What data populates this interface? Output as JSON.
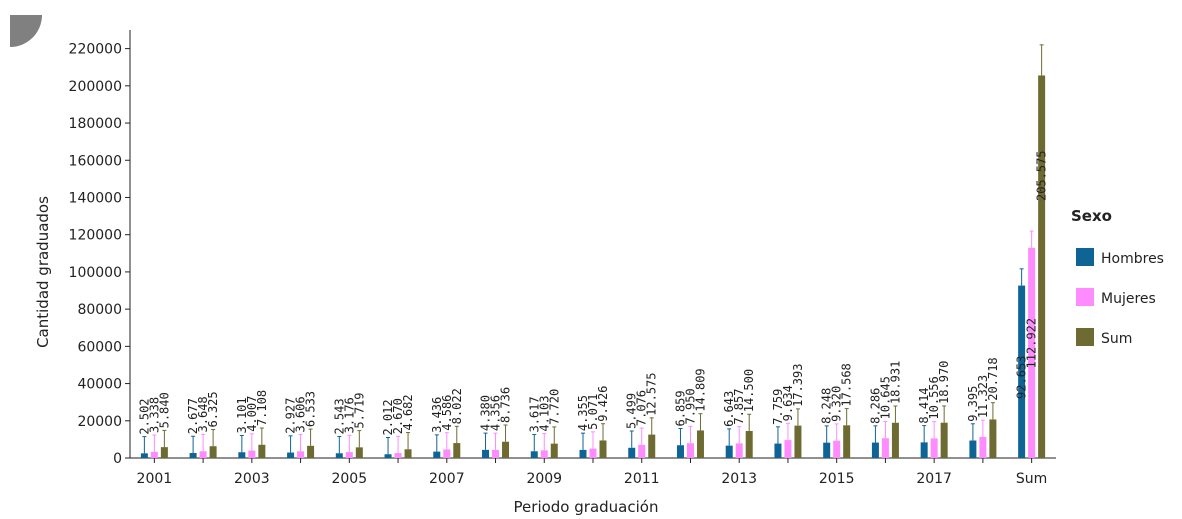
{
  "chart_data": {
    "type": "bar",
    "title": "",
    "xlabel": "Periodo graduación",
    "ylabel": "Cantidad graduados",
    "ylim": [
      0,
      230000
    ],
    "yticks": [
      0,
      20000,
      40000,
      60000,
      80000,
      100000,
      120000,
      140000,
      160000,
      180000,
      200000,
      220000
    ],
    "categories": [
      "2001",
      "2002",
      "2003",
      "2004",
      "2005",
      "2006",
      "2007",
      "2008",
      "2009",
      "2010",
      "2011",
      "2012",
      "2013",
      "2014",
      "2015",
      "2016",
      "2017",
      "2018",
      "Sum"
    ],
    "xtick_labels": [
      "2001",
      "",
      "2003",
      "",
      "2005",
      "",
      "2007",
      "",
      "2009",
      "",
      "2011",
      "",
      "2013",
      "",
      "2015",
      "",
      "2017",
      "",
      "Sum"
    ],
    "legend_title": "Sexo",
    "legend_position": "right",
    "grid": false,
    "series": [
      {
        "name": "Hombres",
        "color": "#0f6496",
        "values": [
          2502,
          2677,
          3101,
          2927,
          2543,
          2012,
          3436,
          4380,
          3617,
          4355,
          5499,
          6859,
          6643,
          7759,
          8248,
          8286,
          8414,
          9395,
          92653
        ],
        "labels": [
          "2.502",
          "2.677",
          "3.101",
          "2.927",
          "2.543",
          "2.012",
          "3.436",
          "4.380",
          "3.617",
          "4.355",
          "5.499",
          "6.859",
          "6.643",
          "7.759",
          "8.248",
          "8.286",
          "8.414",
          "9.395",
          "92.653"
        ]
      },
      {
        "name": "Mujeres",
        "color": "#ff8cff",
        "values": [
          3338,
          3648,
          4007,
          3606,
          3176,
          2670,
          4586,
          4356,
          4103,
          5071,
          7076,
          7950,
          7857,
          9634,
          9320,
          10645,
          10556,
          11323,
          112922
        ],
        "labels": [
          "3.338",
          "3.648",
          "4.007",
          "3.606",
          "3.176",
          "2.670",
          "4.586",
          "4.356",
          "4.103",
          "5.071",
          "7.076",
          "7.950",
          "7.857",
          "9.634",
          "9.320",
          "10.645",
          "10.556",
          "11.323",
          "112.922"
        ]
      },
      {
        "name": "Sum",
        "color": "#6e6b32",
        "values": [
          5840,
          6325,
          7108,
          6533,
          5719,
          4682,
          8022,
          8736,
          7720,
          9426,
          12575,
          14809,
          14500,
          17393,
          17568,
          18931,
          18970,
          20718,
          205575
        ],
        "labels": [
          "5.840",
          "6.325",
          "7.108",
          "6.533",
          "5.719",
          "4.682",
          "8.022",
          "8.736",
          "7.720",
          "9.426",
          "12.575",
          "14.809",
          "14.500",
          "17.393",
          "17.568",
          "18.931",
          "18.970",
          "20.718",
          "205.575"
        ]
      }
    ]
  }
}
